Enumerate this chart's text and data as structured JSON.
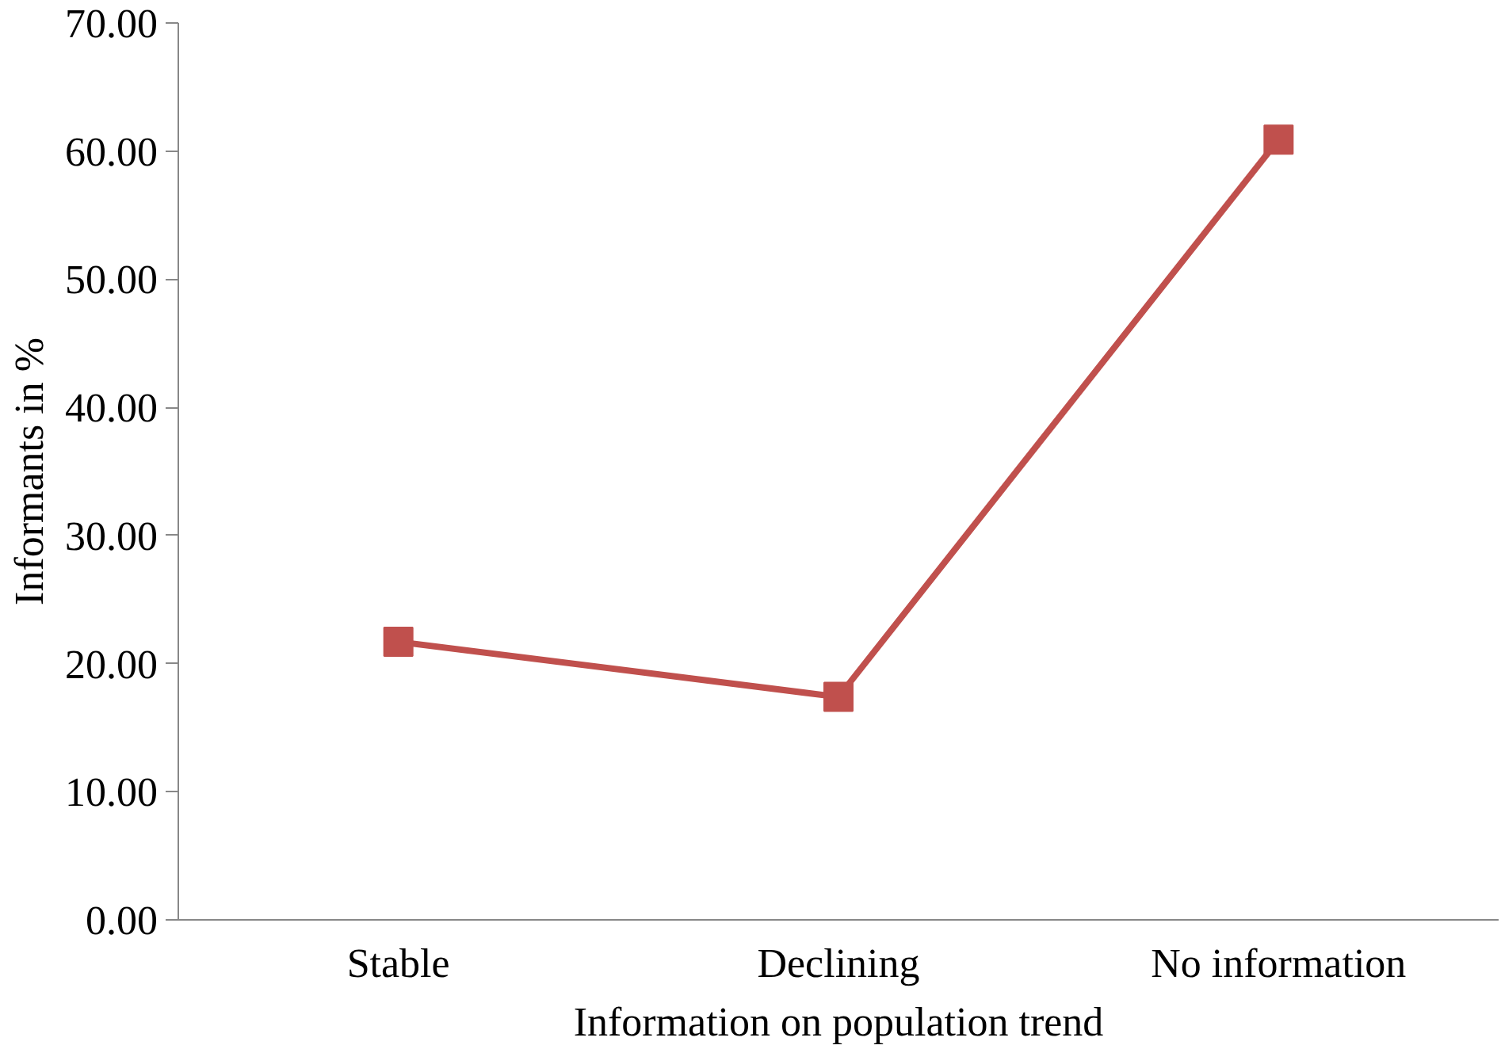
{
  "chart_data": {
    "type": "line",
    "xlabel": "Information on population trend",
    "ylabel": "Informants in %",
    "categories": [
      "Stable",
      "Declining",
      "No information"
    ],
    "series": [
      {
        "color": "#c0504d",
        "values": [
          21.7,
          17.4,
          60.9
        ]
      }
    ],
    "ylim": [
      0,
      70
    ],
    "yticks": [
      {
        "value": 0,
        "label": "0.00"
      },
      {
        "value": 10,
        "label": "10.00"
      },
      {
        "value": 20,
        "label": "20.00"
      },
      {
        "value": 30,
        "label": "30.00"
      },
      {
        "value": 40,
        "label": "40.00"
      },
      {
        "value": 50,
        "label": "50.00"
      },
      {
        "value": 60,
        "label": "60.00"
      },
      {
        "value": 70,
        "label": "70.00"
      }
    ],
    "grid": false,
    "marker": "square",
    "line_style": "solid"
  }
}
